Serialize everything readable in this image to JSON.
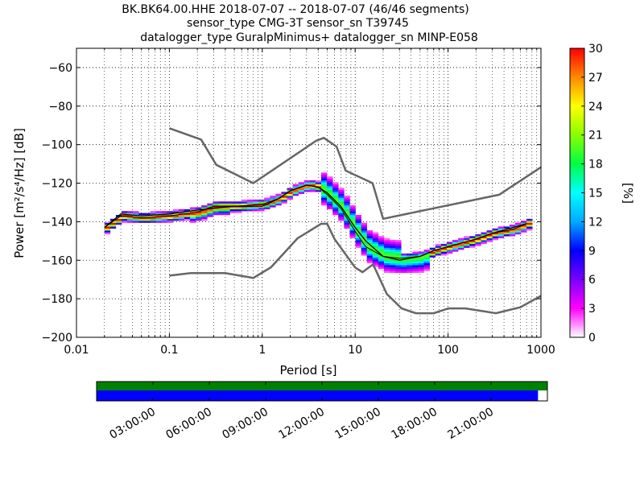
{
  "chart_data": {
    "type": "heatmap",
    "title_lines": [
      "BK.BK64.00.HHE   2018-07-07 -- 2018-07-07  (46/46 segments)",
      "sensor_type CMG-3T sensor_sn T39745",
      "datalogger_type GuralpMinimus+ datalogger_sn MINP-E058"
    ],
    "xlabel": "Period [s]",
    "ylabel": "Power [m²/s⁴/Hz] [dB]",
    "x_scale": "log",
    "xlim": [
      0.01,
      1000
    ],
    "ylim": [
      -200,
      -50
    ],
    "x_ticks": [
      0.01,
      0.1,
      1,
      10,
      100,
      1000
    ],
    "x_tick_labels": [
      "0.01",
      "0.1",
      "1",
      "10",
      "100",
      "1000"
    ],
    "y_ticks": [
      -60,
      -80,
      -100,
      -120,
      -140,
      -160,
      -180,
      -200
    ],
    "y_tick_labels": [
      "−60",
      "−80",
      "−100",
      "−120",
      "−140",
      "−160",
      "−180",
      "−200"
    ],
    "grid": true,
    "colorbar": {
      "label": "[%]",
      "range": [
        0,
        30
      ],
      "ticks": [
        0,
        3,
        6,
        9,
        12,
        15,
        18,
        21,
        24,
        27,
        30
      ],
      "tick_labels": [
        "0",
        "3",
        "6",
        "9",
        "12",
        "15",
        "18",
        "21",
        "24",
        "27",
        "30"
      ],
      "colors": [
        "#ffffff",
        "#ff00ff",
        "#7a00ff",
        "#0000ff",
        "#00aaff",
        "#00ffff",
        "#00ff44",
        "#88ff00",
        "#ffff00",
        "#ff8800",
        "#ff0000"
      ]
    },
    "mode_line": {
      "periods": [
        0.02,
        0.03,
        0.05,
        0.1,
        0.2,
        0.3,
        0.5,
        1,
        1.5,
        2,
        3,
        4,
        5,
        7,
        10,
        13,
        20,
        30,
        50,
        70,
        100,
        200,
        300,
        500,
        700
      ],
      "power": [
        -143,
        -137,
        -138,
        -137,
        -135,
        -132,
        -132,
        -131,
        -128,
        -124,
        -121,
        -122,
        -126,
        -133,
        -145,
        -153,
        -158,
        -159,
        -158,
        -155,
        -153,
        -149,
        -146,
        -144,
        -141
      ]
    },
    "mean_line": {
      "periods": [
        0.02,
        0.03,
        0.05,
        0.1,
        0.2,
        0.3,
        0.5,
        1,
        1.5,
        2,
        3,
        4,
        5,
        7,
        10,
        13,
        20,
        30,
        50,
        70,
        100,
        200,
        300,
        500,
        700
      ],
      "power": [
        -143,
        -136,
        -137,
        -136,
        -134,
        -133,
        -132,
        -132,
        -128,
        -124,
        -121,
        -122,
        -125,
        -132,
        -143,
        -150,
        -158,
        -160,
        -158,
        -155,
        -153,
        -149,
        -146,
        -143,
        -141
      ]
    },
    "high_noise_model": {
      "periods": [
        0.1,
        0.22,
        0.32,
        0.8,
        3.8,
        4.6,
        6.3,
        7.9,
        15.4,
        20,
        354.8,
        10000
      ],
      "power": [
        -91.5,
        -97.4,
        -110.5,
        -120,
        -98,
        -96.5,
        -101,
        -113.5,
        -120,
        -138.5,
        -126,
        -80
      ]
    },
    "low_noise_model": {
      "periods": [
        0.1,
        0.17,
        0.4,
        0.8,
        1.24,
        2.4,
        4.3,
        5,
        6,
        10,
        12,
        15.6,
        21.9,
        31.6,
        45,
        70,
        101,
        154,
        328,
        600,
        10000
      ],
      "power": [
        -168,
        -166.7,
        -166.7,
        -169.2,
        -163.7,
        -148.6,
        -141.1,
        -141.1,
        -149,
        -163.8,
        -166.2,
        -162.1,
        -177.5,
        -185,
        -187.5,
        -187.5,
        -185,
        -185,
        -187.5,
        -184.4,
        -151.9
      ]
    },
    "data_availability": {
      "tick_labels": [
        "03:00:00",
        "06:00:00",
        "09:00:00",
        "12:00:00",
        "15:00:00",
        "18:00:00",
        "21:00:00"
      ],
      "tick_hours": [
        3,
        6,
        9,
        12,
        15,
        18,
        21
      ],
      "range_hours": [
        0,
        24
      ],
      "used_segments": {
        "color": "#008000",
        "start_hour": 0,
        "end_hour": 24
      },
      "data_coverage": {
        "color": "#0000ff",
        "start_hour": 0,
        "end_hour": 23.5
      }
    }
  }
}
